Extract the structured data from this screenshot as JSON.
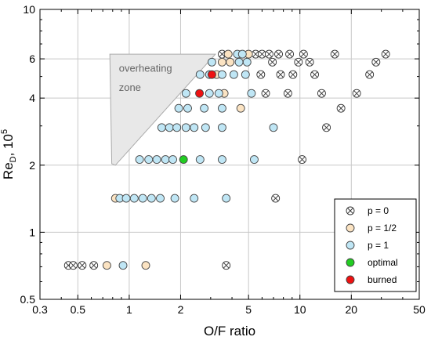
{
  "chart_data": {
    "type": "scatter",
    "x_scale": "log",
    "y_scale": "log",
    "xlim": [
      0.3,
      50
    ],
    "ylim": [
      0.5,
      10
    ],
    "grid": true,
    "xlabel": "O/F ratio",
    "ylabel_main": "Re",
    "ylabel_sub": "D",
    "ylabel_tail": ", 10",
    "ylabel_sup": "5",
    "x_ticks": [
      {
        "value": 0.3,
        "label": "0.3"
      },
      {
        "value": 0.5,
        "label": "0.5"
      },
      {
        "value": 1,
        "label": "1"
      },
      {
        "value": 2,
        "label": "2"
      },
      {
        "value": 5,
        "label": "5"
      },
      {
        "value": 10,
        "label": "10"
      },
      {
        "value": 20,
        "label": "20"
      },
      {
        "value": 50,
        "label": "50"
      }
    ],
    "y_ticks": [
      {
        "value": 0.5,
        "label": "0.5"
      },
      {
        "value": 1,
        "label": "1"
      },
      {
        "value": 2,
        "label": "2"
      },
      {
        "value": 4,
        "label": "4"
      },
      {
        "value": 6,
        "label": "6"
      },
      {
        "value": 10,
        "label": "10"
      }
    ],
    "overheating_zone": {
      "label_line1": "overheating",
      "label_line2": "zone",
      "fill": "#e8e8e8",
      "stroke": "#aaaaaa",
      "polygon": [
        [
          0.77,
          6.3
        ],
        [
          3.2,
          6.3
        ],
        [
          0.83,
          2.0
        ],
        [
          0.79,
          2.03
        ]
      ]
    },
    "series": [
      {
        "name": "p = 0",
        "marker": "crossed-circle",
        "fill": "#ffffff",
        "stroke": "#333333",
        "points": [
          [
            0.44,
            0.71
          ],
          [
            0.47,
            0.71
          ],
          [
            0.53,
            0.71
          ],
          [
            0.62,
            0.71
          ],
          [
            3.7,
            0.71
          ],
          [
            7.2,
            1.42
          ],
          [
            10.3,
            2.12
          ],
          [
            14.3,
            2.95
          ],
          [
            17.4,
            3.6
          ],
          [
            6.3,
            4.2
          ],
          [
            8.5,
            4.2
          ],
          [
            13.4,
            4.2
          ],
          [
            21.5,
            4.2
          ],
          [
            5.9,
            5.1
          ],
          [
            7.7,
            5.1
          ],
          [
            9.1,
            5.1
          ],
          [
            12.2,
            5.1
          ],
          [
            25.6,
            5.1
          ],
          [
            6.9,
            5.8
          ],
          [
            9.8,
            5.8
          ],
          [
            11.4,
            5.8
          ],
          [
            27.9,
            5.8
          ],
          [
            3.5,
            6.3
          ],
          [
            5.5,
            6.3
          ],
          [
            6.0,
            6.3
          ],
          [
            6.6,
            6.3
          ],
          [
            7.5,
            6.3
          ],
          [
            8.7,
            6.3
          ],
          [
            10.5,
            6.3
          ],
          [
            16.0,
            6.3
          ],
          [
            31.8,
            6.3
          ]
        ]
      },
      {
        "name": "p = 1/2",
        "marker": "circle",
        "fill": "#fbe3c2",
        "stroke": "#444444",
        "points": [
          [
            0.74,
            0.71
          ],
          [
            1.25,
            0.71
          ],
          [
            0.83,
            1.42
          ],
          [
            4.5,
            3.6
          ],
          [
            3.6,
            4.2
          ],
          [
            3.25,
            5.1
          ],
          [
            3.5,
            5.8
          ],
          [
            3.9,
            5.8
          ],
          [
            3.8,
            6.3
          ],
          [
            5.0,
            6.3
          ]
        ]
      },
      {
        "name": "p = 1",
        "marker": "circle",
        "fill": "#bfe6f5",
        "stroke": "#444444",
        "points": [
          [
            0.92,
            0.71
          ],
          [
            0.88,
            1.42
          ],
          [
            0.96,
            1.42
          ],
          [
            1.07,
            1.42
          ],
          [
            1.2,
            1.42
          ],
          [
            1.35,
            1.42
          ],
          [
            1.52,
            1.42
          ],
          [
            1.85,
            1.42
          ],
          [
            2.4,
            1.42
          ],
          [
            3.7,
            1.42
          ],
          [
            1.15,
            2.12
          ],
          [
            1.3,
            2.12
          ],
          [
            1.45,
            2.12
          ],
          [
            1.63,
            2.12
          ],
          [
            1.8,
            2.12
          ],
          [
            2.6,
            2.12
          ],
          [
            3.5,
            2.12
          ],
          [
            5.4,
            2.12
          ],
          [
            1.55,
            2.95
          ],
          [
            1.72,
            2.95
          ],
          [
            1.9,
            2.95
          ],
          [
            2.15,
            2.95
          ],
          [
            2.4,
            2.95
          ],
          [
            2.8,
            2.95
          ],
          [
            3.5,
            2.95
          ],
          [
            7.0,
            2.95
          ],
          [
            1.95,
            3.6
          ],
          [
            2.2,
            3.6
          ],
          [
            2.75,
            3.6
          ],
          [
            3.5,
            3.6
          ],
          [
            2.15,
            4.2
          ],
          [
            2.95,
            4.2
          ],
          [
            3.35,
            4.2
          ],
          [
            5.2,
            4.2
          ],
          [
            2.6,
            5.1
          ],
          [
            2.95,
            5.1
          ],
          [
            3.5,
            5.1
          ],
          [
            4.1,
            5.1
          ],
          [
            4.8,
            5.1
          ],
          [
            3.05,
            5.8
          ],
          [
            4.4,
            5.8
          ],
          [
            4.9,
            5.8
          ],
          [
            4.3,
            6.3
          ],
          [
            4.6,
            6.3
          ]
        ]
      },
      {
        "name": "optimal",
        "marker": "circle",
        "fill": "#22cc22",
        "stroke": "#444444",
        "points": [
          [
            2.08,
            2.12
          ]
        ]
      },
      {
        "name": "burned",
        "marker": "circle",
        "fill": "#ee1111",
        "stroke": "#444444",
        "points": [
          [
            2.58,
            4.2
          ],
          [
            3.05,
            5.1
          ]
        ]
      }
    ],
    "legend": {
      "position": "bottom-right",
      "entries": [
        "p = 0",
        "p = 1/2",
        "p = 1",
        "optimal",
        "burned"
      ]
    }
  }
}
